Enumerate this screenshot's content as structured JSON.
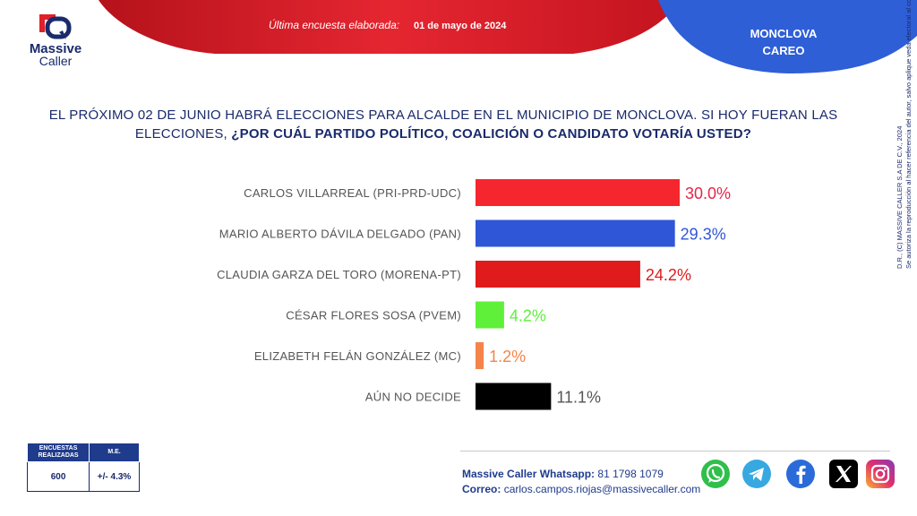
{
  "header": {
    "brand_line1": "Massive",
    "brand_line2": "Caller",
    "survey_label": "Última encuesta elaborada:",
    "survey_date": "01 de mayo de 2024",
    "region_line1": "MONCLOVA",
    "region_line2": "CAREO"
  },
  "question": {
    "part1": "EL PRÓXIMO 02 DE JUNIO HABRÁ ELECCIONES PARA ALCALDE EN EL MUNICIPIO DE MONCLOVA. SI HOY FUERAN LAS ELECCIONES, ",
    "part2": "¿POR CUÁL PARTIDO POLÍTICO, COALICIÓN O CANDIDATO VOTARÍA USTED?"
  },
  "chart_data": {
    "type": "bar",
    "orientation": "horizontal",
    "categories": [
      "CARLOS VILLARREAL (PRI-PRD-UDC)",
      "MARIO ALBERTO DÁVILA DELGADO (PAN)",
      "CLAUDIA GARZA DEL TORO (MORENA-PT)",
      "CÉSAR FLORES SOSA (PVEM)",
      "ELIZABETH FELÁN GONZÁLEZ (MC)",
      "AÚN NO DECIDE"
    ],
    "values": [
      30.0,
      29.3,
      24.2,
      4.2,
      1.2,
      11.1
    ],
    "value_labels": [
      "30.0%",
      "29.3%",
      "24.2%",
      "4.2%",
      "1.2%",
      "11.1%"
    ],
    "bar_colors": [
      "#f5262d",
      "#2f56d6",
      "#e01b1b",
      "#5ff03a",
      "#f5844a",
      "#000000"
    ],
    "label_colors": [
      "#e8234a",
      "#2f56d6",
      "#e01b1b",
      "#5ff03a",
      "#f5844a",
      "#555555"
    ],
    "xlim": [
      0,
      30
    ],
    "title": "",
    "xlabel": "",
    "ylabel": ""
  },
  "legal": {
    "line1": "D.R., (C) MASSIVE CALLER S.A DE C.V., 2024",
    "line2": "Se autoriza la reproducción al hacer referencia del autor, salvo aplique veda electoral al contenido."
  },
  "stats": {
    "col1_header_line1": "ENCUESTAS",
    "col1_header_line2": "REALIZADAS",
    "col2_header": "M.E.",
    "col1_value": "600",
    "col2_value": "+/- 4.3%"
  },
  "contact": {
    "whatsapp_label": "Massive Caller Whatsapp:",
    "whatsapp_number": "81 1798 1079",
    "email_label": "Correo:",
    "email_value": "carlos.campos.riojas@massivecaller.com"
  },
  "social": [
    "whatsapp-icon",
    "telegram-icon",
    "facebook-icon",
    "x-icon",
    "instagram-icon"
  ],
  "colors": {
    "navy": "#1a2a6c",
    "red": "#e0202a",
    "blue": "#2f5fd6"
  }
}
